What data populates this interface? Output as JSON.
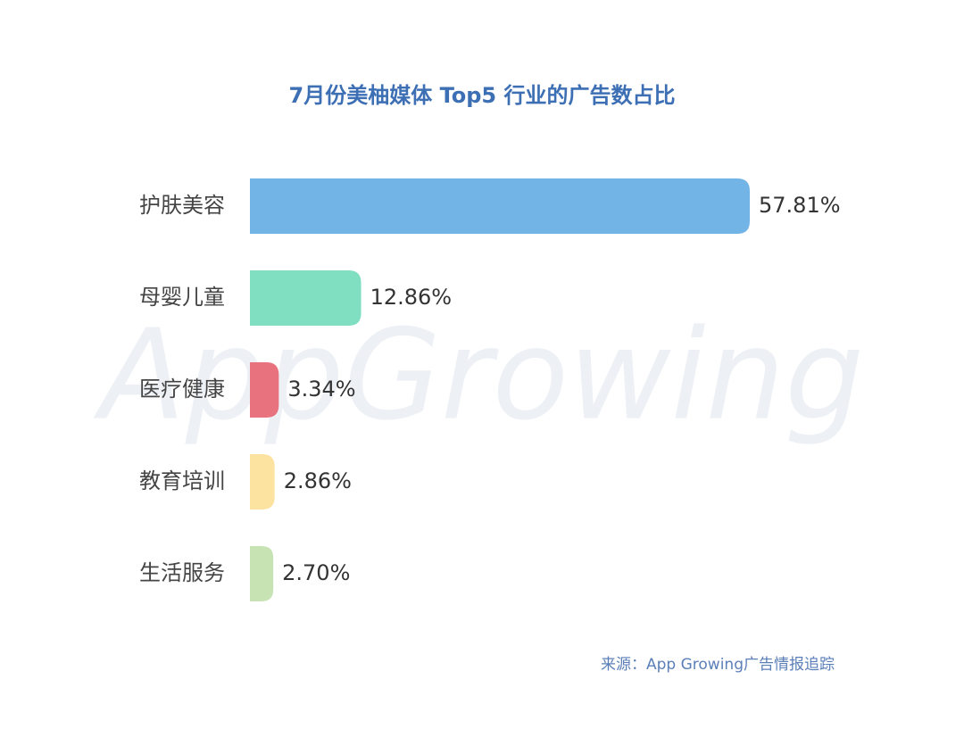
{
  "chart_data": {
    "type": "bar",
    "orientation": "horizontal",
    "title": "7月份美柚媒体  Top5  行业的广告数占比",
    "categories": [
      "护肤美容",
      "母婴儿童",
      "医疗健康",
      "教育培训",
      "生活服务"
    ],
    "values": [
      57.81,
      12.86,
      3.34,
      2.86,
      2.7
    ],
    "value_labels": [
      "57.81%",
      "12.86%",
      "3.34%",
      "2.86%",
      "2.70%"
    ],
    "colors": [
      "#72b4e6",
      "#7fdfc0",
      "#e8727e",
      "#fde3a0",
      "#c7e3b4"
    ],
    "source": "来源：App Growing广告情报追踪",
    "watermark": "AppGrowing"
  }
}
